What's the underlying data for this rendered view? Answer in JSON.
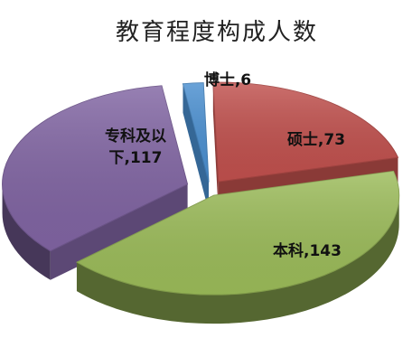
{
  "chart_data": {
    "type": "pie",
    "title": "教育程度构成人数",
    "slices": [
      {
        "label": "博士",
        "value": 6,
        "color": "#4a8fd0",
        "label_lines": [
          "博士,6"
        ]
      },
      {
        "label": "硕士",
        "value": 73,
        "color": "#c0504d",
        "label_lines": [
          "硕士,73"
        ]
      },
      {
        "label": "本科",
        "value": 143,
        "color": "#9bbb59",
        "label_lines": [
          "本科,143"
        ]
      },
      {
        "label": "专科及以下",
        "value": 117,
        "color": "#8064a2",
        "label_lines": [
          "专科及以",
          "下,117"
        ]
      }
    ]
  }
}
